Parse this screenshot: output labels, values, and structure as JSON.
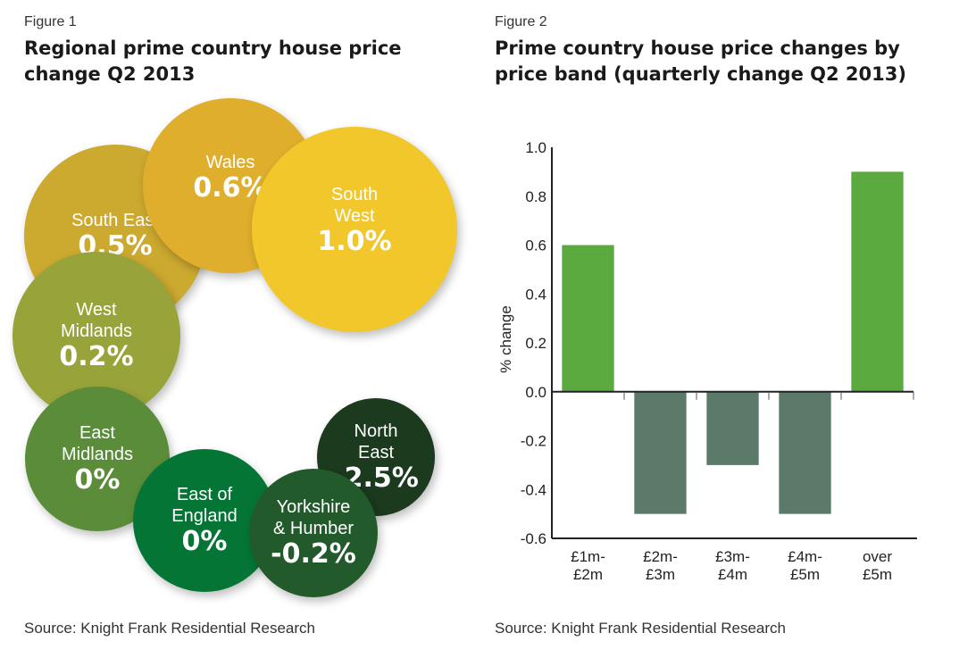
{
  "figure1": {
    "label": "Figure 1",
    "title_line1": "Regional prime country house price",
    "title_line2": "change Q2 2013",
    "source": "Source: Knight Frank Residential Research",
    "regions": [
      {
        "name": "South East",
        "value": "0.5%",
        "color": "#CCA92F"
      },
      {
        "name": "Wales",
        "value": "0.6%",
        "color": "#DEAE2C"
      },
      {
        "name": "South\nWest",
        "value": "1.0%",
        "color": "#F1C72C"
      },
      {
        "name": "West\nMidlands",
        "value": "0.2%",
        "color": "#98A43A"
      },
      {
        "name": "East\nMidlands",
        "value": "0%",
        "color": "#5A8C3A"
      },
      {
        "name": "East of\nEngland",
        "value": "0%",
        "color": "#047535"
      },
      {
        "name": "Yorkshire\n& Humber",
        "value": "-0.2%",
        "color": "#235A2C"
      },
      {
        "name": "North\nEast",
        "value": "-2.5%",
        "color": "#1B3A1E"
      }
    ]
  },
  "figure2": {
    "label": "Figure 2",
    "title_line1": "Prime country house price changes by",
    "title_line2": "price band (quarterly change Q2 2013)",
    "source": "Source: Knight Frank Residential Research"
  },
  "chart_data": {
    "type": "bar",
    "title": "Prime country house price changes by price band (quarterly change Q2 2013)",
    "xlabel": "",
    "ylabel": "% change",
    "categories": [
      [
        "£1m-",
        "£2m"
      ],
      [
        "£2m-",
        "£3m"
      ],
      [
        "£3m-",
        "£4m"
      ],
      [
        "£4m-",
        "£5m"
      ],
      [
        "over",
        "£5m"
      ]
    ],
    "values": [
      0.6,
      -0.5,
      -0.3,
      -0.5,
      0.9
    ],
    "ylim": [
      -0.6,
      1.0
    ],
    "yticks": [
      "1.0",
      "0.8",
      "0.6",
      "0.4",
      "0.2",
      "0.0",
      "-0.2",
      "-0.4",
      "-0.6"
    ],
    "ytick_values": [
      1.0,
      0.8,
      0.6,
      0.4,
      0.2,
      0.0,
      -0.2,
      -0.4,
      -0.6
    ],
    "positive_color": "#5BAA3F",
    "negative_color": "#5C7A6A",
    "grid": false,
    "legend": "none"
  }
}
